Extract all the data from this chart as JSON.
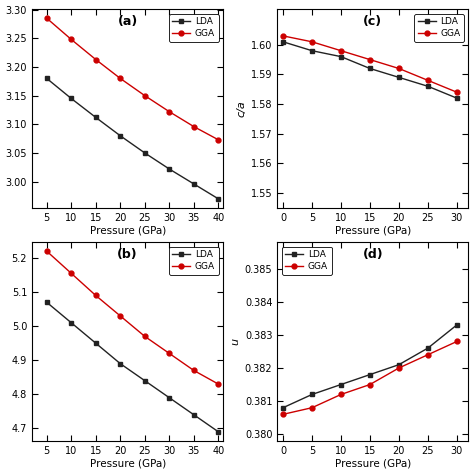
{
  "subplot_a": {
    "label": "(a)",
    "xlabel": "Pressure (GPa)",
    "ylabel": "",
    "x_LDA": [
      5,
      10,
      15,
      20,
      25,
      30,
      35,
      40
    ],
    "y_LDA": [
      3.18,
      3.145,
      3.112,
      3.08,
      3.05,
      3.022,
      2.996,
      2.97
    ],
    "x_GGA": [
      5,
      10,
      15,
      20,
      25,
      30,
      35,
      40
    ],
    "y_GGA": [
      3.285,
      3.248,
      3.213,
      3.18,
      3.15,
      3.122,
      3.096,
      3.073
    ],
    "xlim": [
      2,
      41
    ],
    "ylim_auto": true,
    "xticks": [
      5,
      10,
      15,
      20,
      25,
      30,
      35,
      40
    ]
  },
  "subplot_b": {
    "label": "(b)",
    "xlabel": "Pressure (GPa)",
    "ylabel": "",
    "x_LDA": [
      5,
      10,
      15,
      20,
      25,
      30,
      35,
      40
    ],
    "y_LDA": [
      5.07,
      5.01,
      4.95,
      4.89,
      4.84,
      4.79,
      4.74,
      4.69
    ],
    "x_GGA": [
      5,
      10,
      15,
      20,
      25,
      30,
      35,
      40
    ],
    "y_GGA": [
      5.22,
      5.155,
      5.09,
      5.03,
      4.97,
      4.92,
      4.87,
      4.83
    ],
    "xlim": [
      2,
      41
    ],
    "ylim_auto": true,
    "xticks": [
      5,
      10,
      15,
      20,
      25,
      30,
      35,
      40
    ]
  },
  "subplot_c": {
    "label": "(c)",
    "xlabel": "Pressure (GPa)",
    "ylabel": "c/a",
    "x_LDA": [
      0,
      5,
      10,
      15,
      20,
      25,
      30
    ],
    "y_LDA": [
      1.601,
      1.598,
      1.596,
      1.592,
      1.589,
      1.586,
      1.582
    ],
    "x_GGA": [
      0,
      5,
      10,
      15,
      20,
      25,
      30
    ],
    "y_GGA": [
      1.603,
      1.601,
      1.598,
      1.595,
      1.592,
      1.588,
      1.584
    ],
    "ylim": [
      1.545,
      1.612
    ],
    "yticks": [
      1.55,
      1.56,
      1.57,
      1.58,
      1.59,
      1.6
    ],
    "xlim": [
      -1,
      32
    ],
    "xticks": [
      0,
      5,
      10,
      15,
      20,
      25,
      30
    ]
  },
  "subplot_d": {
    "label": "(d)",
    "xlabel": "Pressure (GPa)",
    "ylabel": "u",
    "x_LDA": [
      0,
      5,
      10,
      15,
      20,
      25,
      30
    ],
    "y_LDA": [
      0.3808,
      0.3812,
      0.3815,
      0.3818,
      0.3821,
      0.3826,
      0.3833
    ],
    "x_GGA": [
      0,
      5,
      10,
      15,
      20,
      25,
      30
    ],
    "y_GGA": [
      0.3806,
      0.3808,
      0.3812,
      0.3815,
      0.382,
      0.3824,
      0.3828
    ],
    "ylim": [
      0.3798,
      0.3858
    ],
    "yticks": [
      0.38,
      0.381,
      0.382,
      0.383,
      0.384,
      0.385
    ],
    "xlim": [
      -1,
      32
    ],
    "xticks": [
      0,
      5,
      10,
      15,
      20,
      25,
      30
    ]
  },
  "color_LDA": "#222222",
  "color_GGA": "#cc0000"
}
